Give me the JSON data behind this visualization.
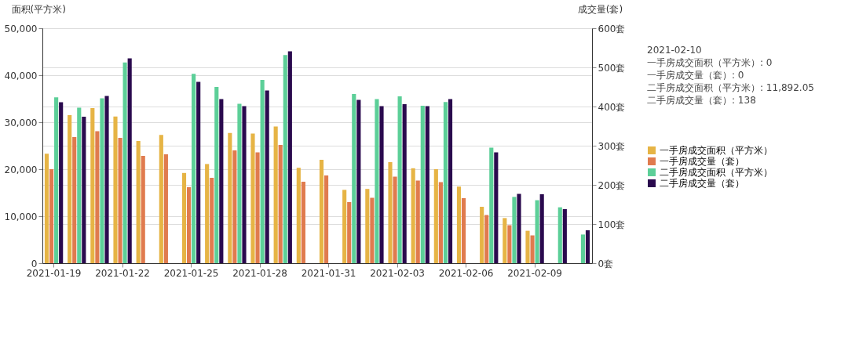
{
  "chart_data": {
    "type": "bar",
    "categories": [
      "2021-01-19",
      null,
      null,
      "2021-01-22",
      null,
      null,
      "2021-01-25",
      null,
      null,
      "2021-01-28",
      null,
      null,
      "2021-01-31",
      null,
      null,
      "2021-02-03",
      null,
      null,
      "2021-02-06",
      null,
      null,
      "2021-02-09",
      null,
      null
    ],
    "ylabel": "面积(平方米)",
    "y2label": "成交量(套)",
    "ylim": [
      0,
      50000
    ],
    "yticks": [
      {
        "value": 0,
        "label": "0"
      },
      {
        "value": 10000,
        "label": "10,000"
      },
      {
        "value": 20000,
        "label": "20,000"
      },
      {
        "value": 30000,
        "label": "30,000"
      },
      {
        "value": 40000,
        "label": "40,000"
      },
      {
        "value": 50000,
        "label": "50,000"
      }
    ],
    "y2lim": [
      0,
      600
    ],
    "y2ticks": [
      {
        "value": 0,
        "label": "0套"
      },
      {
        "value": 100,
        "label": "100套"
      },
      {
        "value": 200,
        "label": "200套"
      },
      {
        "value": 300,
        "label": "300套"
      },
      {
        "value": 400,
        "label": "400套"
      },
      {
        "value": 500,
        "label": "500套"
      },
      {
        "value": 600,
        "label": "600套"
      }
    ],
    "grid": true,
    "legend": "right",
    "series": [
      {
        "name": "一手房成交面积（平方米）",
        "color": "#e6b445",
        "values": [
          23300,
          31500,
          33000,
          31200,
          26000,
          27300,
          19200,
          21100,
          27700,
          27600,
          29100,
          20300,
          22000,
          15600,
          15800,
          21500,
          20200,
          20000,
          16300,
          12000,
          9600,
          6900,
          0,
          0
        ]
      },
      {
        "name": "一手房成交量（套）",
        "color": "#e07b4e",
        "axis": "y2",
        "values": [
          240,
          322,
          337,
          320,
          274,
          278,
          194,
          218,
          288,
          283,
          302,
          208,
          224,
          156,
          167,
          221,
          211,
          207,
          166,
          123,
          97,
          71,
          0,
          0
        ]
      },
      {
        "name": "二手房成交面积（平方米）",
        "color": "#5ccf98",
        "values": [
          35300,
          33100,
          35100,
          42700,
          0,
          0,
          40300,
          37500,
          33900,
          39000,
          44300,
          0,
          0,
          36000,
          34900,
          35500,
          33500,
          34300,
          0,
          24600,
          14100,
          13400,
          11892.05,
          6100
        ]
      },
      {
        "name": "二手房成交量（套）",
        "color": "#2a0a4e",
        "axis": "y2",
        "values": [
          411,
          374,
          427,
          523,
          0,
          0,
          463,
          419,
          401,
          441,
          541,
          0,
          0,
          417,
          401,
          406,
          401,
          419,
          0,
          283,
          177,
          176,
          138,
          84
        ]
      }
    ],
    "annotations": [
      "2021-02-10",
      "一手房成交面积（平方米）: 0",
      "一手房成交量（套）: 0",
      "二手房成交面积（平方米）: 11,892.05",
      "二手房成交量（套）: 138"
    ]
  }
}
